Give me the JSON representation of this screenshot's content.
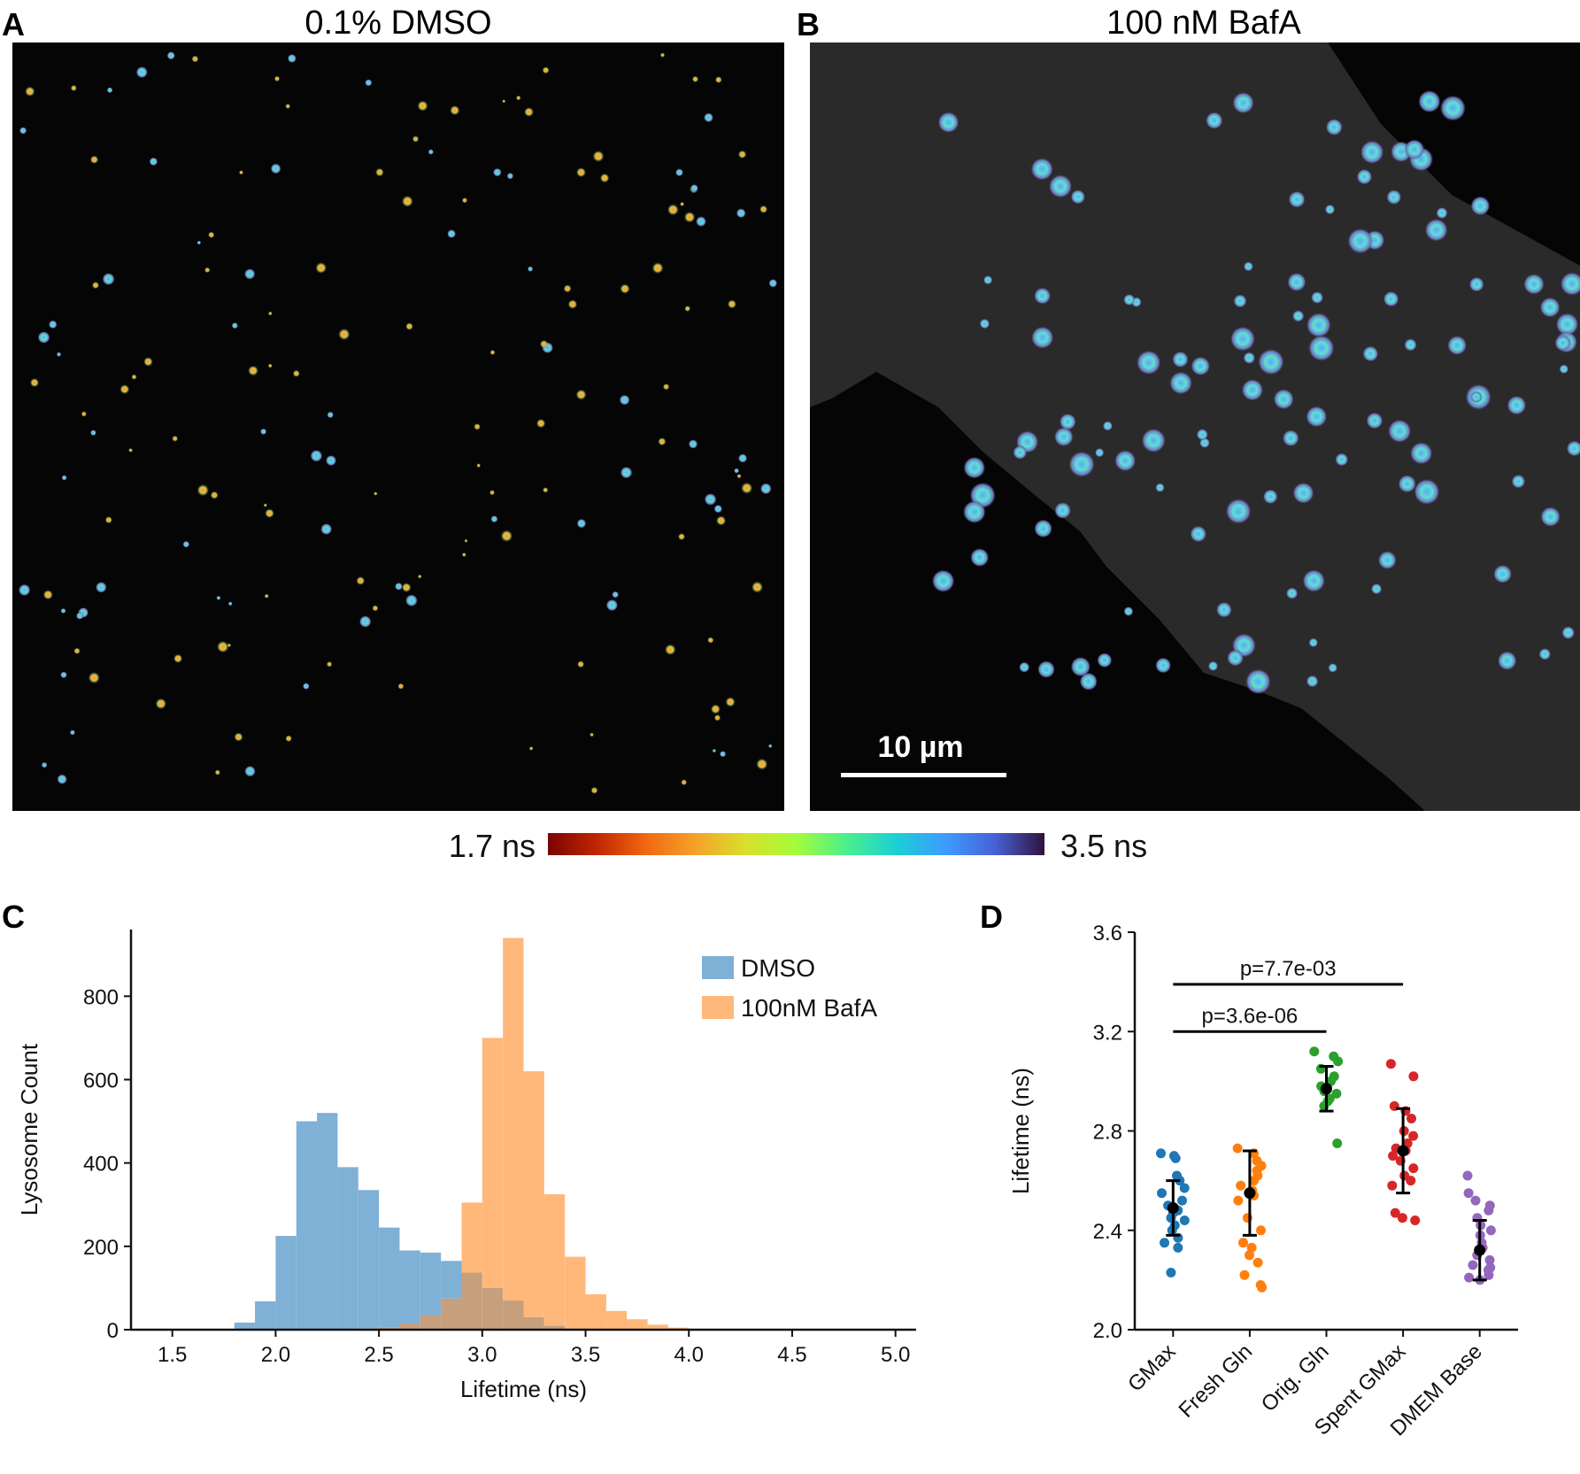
{
  "panels": {
    "A": {
      "letter": "A",
      "title": "0.1% DMSO"
    },
    "B": {
      "letter": "B",
      "title": "100 nM BafA",
      "scale_bar": "10 µm"
    },
    "C": {
      "letter": "C"
    },
    "D": {
      "letter": "D"
    }
  },
  "colorbar": {
    "min_label": "1.7 ns",
    "max_label": "3.5 ns",
    "stops": [
      "#7a0403",
      "#c22602",
      "#f26a11",
      "#f4a32a",
      "#d9e02a",
      "#a4fc3b",
      "#4bf08a",
      "#1bd0d5",
      "#3e9bfe",
      "#4662d7",
      "#30123b"
    ]
  },
  "colors": {
    "dmso": "#7fb0d6",
    "bafa": "#ffb87a",
    "overlap": "#c69f7d"
  },
  "chart_data": [
    {
      "type": "histogram",
      "panel": "C",
      "xlabel": "Lifetime (ns)",
      "ylabel": "Lysosome Count",
      "xlim": [
        1.3,
        5.1
      ],
      "ylim": [
        0,
        960
      ],
      "xticks": [
        "1.5",
        "2.0",
        "2.5",
        "3.0",
        "3.5",
        "4.0",
        "4.5",
        "5.0"
      ],
      "yticks": [
        "0",
        "200",
        "400",
        "600",
        "800"
      ],
      "bin_start": 1.8,
      "bin_width": 0.1,
      "series": [
        {
          "name": "DMSO",
          "color": "#7fb0d6",
          "values": [
            17,
            68,
            225,
            500,
            520,
            390,
            335,
            245,
            190,
            185,
            165,
            137,
            100,
            70,
            30,
            10,
            3,
            0,
            0,
            0,
            0,
            0,
            0
          ]
        },
        {
          "name": "100nM BafA",
          "color": "#ffb87a",
          "values": [
            0,
            0,
            0,
            0,
            0,
            0,
            3,
            5,
            15,
            35,
            75,
            305,
            700,
            940,
            620,
            325,
            175,
            85,
            45,
            25,
            12,
            5,
            0
          ]
        }
      ],
      "legend": [
        "DMSO",
        "100nM BafA"
      ],
      "legend_position": "top-right"
    },
    {
      "type": "scatter",
      "panel": "D",
      "ylabel": "Lifetime (ns)",
      "ylim": [
        2.0,
        3.6
      ],
      "yticks": [
        "2.0",
        "2.4",
        "2.8",
        "3.2",
        "3.6"
      ],
      "categories": [
        "GMax",
        "Fresh Gln",
        "Orig. Gln",
        "Spent GMax",
        "DMEM Base"
      ],
      "colors": [
        "#1f77b4",
        "#ff7f0e",
        "#2ca02c",
        "#d62728",
        "#9467bd"
      ],
      "means": [
        2.49,
        2.55,
        2.97,
        2.72,
        2.32
      ],
      "sd": [
        0.11,
        0.17,
        0.09,
        0.17,
        0.12
      ],
      "points": [
        [
          2.71,
          2.7,
          2.69,
          2.62,
          2.6,
          2.57,
          2.55,
          2.52,
          2.5,
          2.48,
          2.47,
          2.45,
          2.44,
          2.42,
          2.4,
          2.37,
          2.35,
          2.33,
          2.23
        ],
        [
          2.73,
          2.71,
          2.68,
          2.66,
          2.64,
          2.62,
          2.6,
          2.58,
          2.56,
          2.54,
          2.52,
          2.45,
          2.4,
          2.35,
          2.33,
          2.3,
          2.27,
          2.22,
          2.18,
          2.17
        ],
        [
          3.12,
          3.1,
          3.08,
          3.05,
          3.02,
          3.0,
          2.98,
          2.96,
          2.95,
          2.93,
          2.92,
          2.9,
          2.75
        ],
        [
          3.07,
          3.02,
          2.9,
          2.88,
          2.85,
          2.8,
          2.78,
          2.75,
          2.73,
          2.72,
          2.7,
          2.68,
          2.65,
          2.62,
          2.6,
          2.58,
          2.47,
          2.45,
          2.44
        ],
        [
          2.62,
          2.55,
          2.52,
          2.5,
          2.48,
          2.45,
          2.42,
          2.4,
          2.38,
          2.35,
          2.33,
          2.3,
          2.28,
          2.26,
          2.25,
          2.24,
          2.22,
          2.21,
          2.2
        ]
      ],
      "annotations": [
        {
          "text": "p=7.7e-03",
          "from": "GMax",
          "to": "Spent GMax",
          "y": 3.39
        },
        {
          "text": "p=3.6e-06",
          "from": "GMax",
          "to": "Orig. Gln",
          "y": 3.2
        }
      ]
    }
  ]
}
